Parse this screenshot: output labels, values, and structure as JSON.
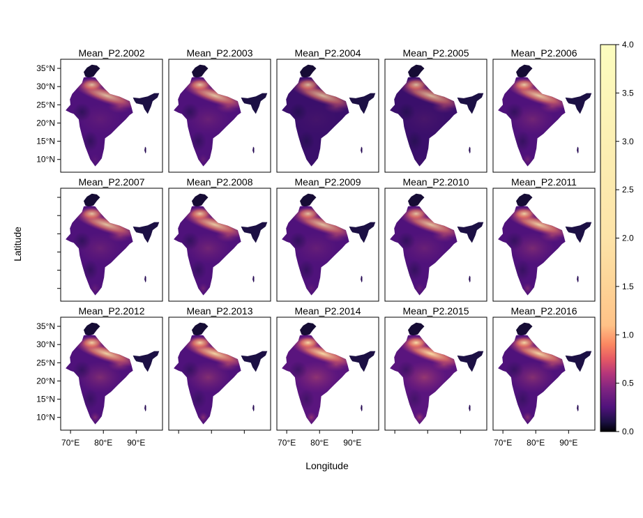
{
  "figure": {
    "x_axis_label": "Longitude",
    "y_axis_label": "Latitude"
  },
  "chart_data": {
    "type": "heatmap",
    "layout": {
      "rows": 3,
      "cols": 5
    },
    "panels": [
      {
        "title": "Mean_P2.2002",
        "intensity": 0.45
      },
      {
        "title": "Mean_P2.2003",
        "intensity": 0.5
      },
      {
        "title": "Mean_P2.2004",
        "intensity": 0.4
      },
      {
        "title": "Mean_P2.2005",
        "intensity": 0.42
      },
      {
        "title": "Mean_P2.2006",
        "intensity": 0.55
      },
      {
        "title": "Mean_P2.2007",
        "intensity": 0.5
      },
      {
        "title": "Mean_P2.2008",
        "intensity": 0.55
      },
      {
        "title": "Mean_P2.2009",
        "intensity": 0.48
      },
      {
        "title": "Mean_P2.2010",
        "intensity": 0.5
      },
      {
        "title": "Mean_P2.2011",
        "intensity": 0.6
      },
      {
        "title": "Mean_P2.2012",
        "intensity": 0.62
      },
      {
        "title": "Mean_P2.2013",
        "intensity": 0.65
      },
      {
        "title": "Mean_P2.2014",
        "intensity": 0.68
      },
      {
        "title": "Mean_P2.2015",
        "intensity": 0.72
      },
      {
        "title": "Mean_P2.2016",
        "intensity": 0.66
      }
    ],
    "x_ticks": [
      "70°E",
      "80°E",
      "90°E"
    ],
    "x_tick_values": [
      70,
      80,
      90
    ],
    "x_ticks_labeled_cols": [
      0,
      2,
      4
    ],
    "y_ticks": [
      "35°N",
      "30°N",
      "25°N",
      "20°N",
      "15°N",
      "10°N"
    ],
    "y_tick_values": [
      35,
      30,
      25,
      20,
      15,
      10
    ],
    "y_ticks_labeled_rows": [
      0,
      2
    ],
    "xlim": [
      67,
      98
    ],
    "ylim": [
      6.5,
      37.5
    ],
    "colorbar": {
      "min": 0.0,
      "max": 4.0,
      "ticks": [
        "0.0",
        "0.5",
        "1.0",
        "1.5",
        "2.0",
        "2.5",
        "3.0",
        "3.5",
        "4.0"
      ],
      "stops": [
        {
          "value": 0.0,
          "color": "#000004"
        },
        {
          "value": 0.1,
          "color": "#1c1044"
        },
        {
          "value": 0.25,
          "color": "#4f127b"
        },
        {
          "value": 0.45,
          "color": "#812581"
        },
        {
          "value": 0.6,
          "color": "#b5367a"
        },
        {
          "value": 0.75,
          "color": "#e55964"
        },
        {
          "value": 0.9,
          "color": "#fb8761"
        },
        {
          "value": 1.1,
          "color": "#fec287"
        },
        {
          "value": 1.6,
          "color": "#fdd79a"
        },
        {
          "value": 2.0,
          "color": "#fde3a8"
        },
        {
          "value": 3.0,
          "color": "#fcefb3"
        },
        {
          "value": 4.0,
          "color": "#fcfdbf"
        }
      ]
    }
  }
}
